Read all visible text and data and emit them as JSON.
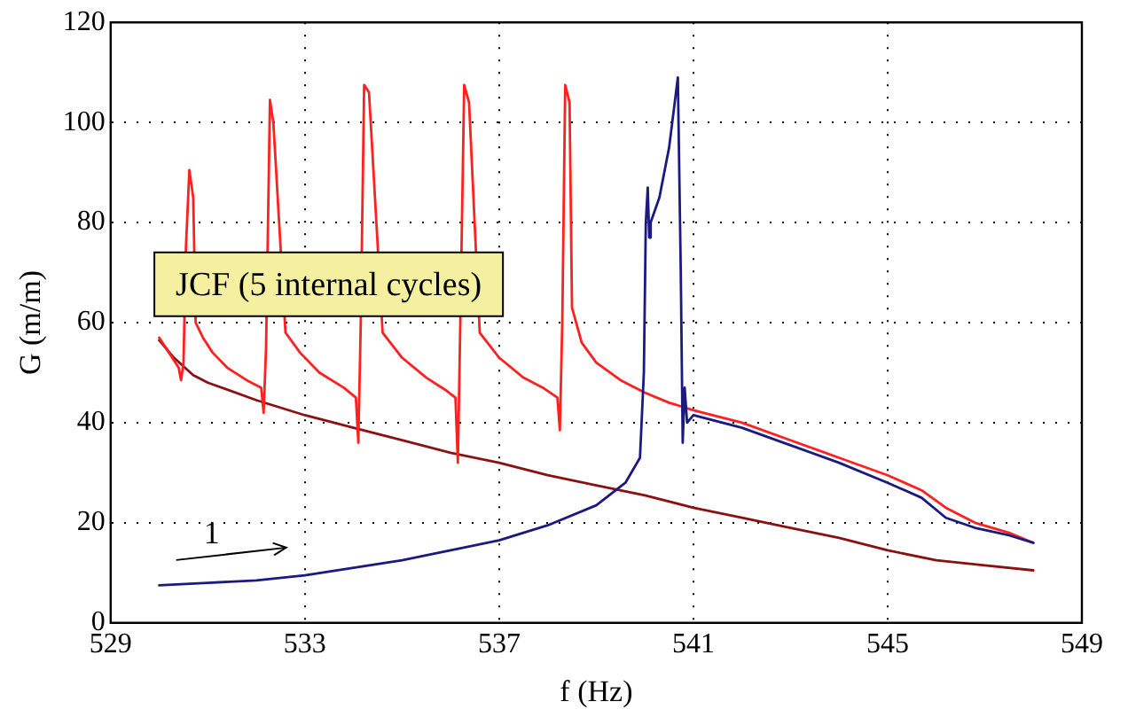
{
  "chart_data": {
    "type": "line",
    "xlabel": "f (Hz)",
    "ylabel": "G (m/m)",
    "xlim": [
      529,
      549
    ],
    "xticks": [
      529,
      533,
      537,
      541,
      545,
      549
    ],
    "ylim": [
      0,
      120
    ],
    "yticks": [
      0,
      20,
      40,
      60,
      80,
      100,
      120
    ],
    "grid": true,
    "legend": false,
    "marker": "none",
    "line_style": "solid",
    "annotations": [
      "JCF (5 internal cycles)",
      "1"
    ],
    "series": [
      {
        "color": "#1a1a80",
        "x": [
          530,
          531,
          532,
          533,
          534,
          535,
          536,
          537,
          538,
          539,
          539.6,
          539.9,
          539.98,
          540.02,
          540.06,
          540.09,
          540.12,
          540.3,
          540.5,
          540.68,
          540.74,
          540.78,
          540.82,
          540.87,
          541,
          542,
          543,
          544,
          545,
          545.7,
          546.2,
          546.8,
          547.5,
          548
        ],
        "values": [
          7.5,
          8,
          8.5,
          9.5,
          11,
          12.5,
          14.5,
          16.5,
          19.5,
          23.5,
          28,
          33,
          50,
          80,
          87,
          77,
          80,
          85,
          95,
          109,
          70,
          36,
          47,
          40,
          41.5,
          39,
          35.5,
          32,
          28,
          25,
          21,
          19,
          17.5,
          16
        ]
      },
      {
        "color": "#ff2020",
        "x": [
          530,
          530.2,
          530.4,
          530.45,
          530.5,
          530.55,
          530.62,
          530.7,
          530.75,
          530.9,
          531.1,
          531.4,
          531.8,
          532.1,
          532.15,
          532.2,
          532.28,
          532.35,
          532.6,
          532.9,
          533.3,
          533.8,
          534.05,
          534.1,
          534.15,
          534.22,
          534.32,
          534.6,
          535,
          535.5,
          535.9,
          536.1,
          536.15,
          536.2,
          536.28,
          536.38,
          536.6,
          537,
          537.5,
          537.9,
          538.2,
          538.25,
          538.3,
          538.36,
          538.45,
          538.5,
          538.7,
          539,
          539.5,
          540,
          540.5,
          541,
          542,
          543,
          544,
          545,
          545.7,
          546.2,
          546.8,
          547.5,
          548
        ],
        "values": [
          57,
          54,
          51,
          48.5,
          52,
          75,
          90.5,
          85,
          60,
          57,
          54,
          51,
          48.5,
          47,
          42,
          55,
          104.5,
          100,
          58,
          54,
          50,
          47,
          45,
          36,
          60,
          107.5,
          106,
          58,
          53,
          49,
          46.5,
          45,
          32,
          60,
          107.5,
          104,
          58,
          53,
          49,
          47,
          45,
          38.5,
          60,
          107.5,
          104,
          63,
          56,
          52,
          48.5,
          46,
          44,
          42.5,
          40,
          36.5,
          33,
          29.5,
          26.5,
          23,
          20,
          18,
          16
        ]
      },
      {
        "color": "#8b1010",
        "x": [
          530,
          530.3,
          530.7,
          531,
          532,
          533,
          534,
          535,
          536,
          537,
          538,
          539,
          540,
          541,
          542,
          543,
          544,
          545,
          546,
          547,
          548
        ],
        "values": [
          56.5,
          53,
          49.5,
          48,
          44.5,
          41.5,
          39,
          36.5,
          34,
          32,
          29.5,
          27.5,
          25.5,
          23,
          21,
          19,
          17,
          14.5,
          12.5,
          11.5,
          10.5
        ]
      }
    ]
  }
}
